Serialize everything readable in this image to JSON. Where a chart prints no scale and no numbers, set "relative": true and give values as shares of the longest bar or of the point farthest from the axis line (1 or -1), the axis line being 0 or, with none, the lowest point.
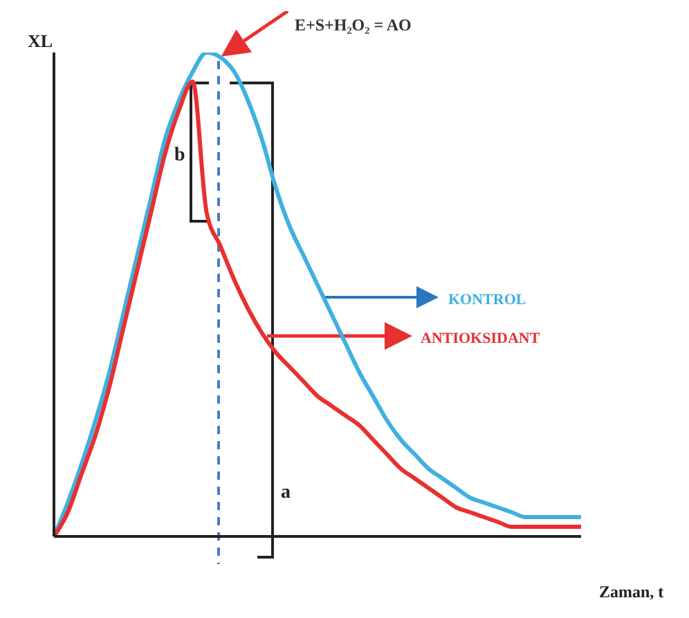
{
  "chart_data": {
    "type": "line",
    "relative": true,
    "xlabel": "Zaman, t",
    "ylabel": "XL",
    "categories": [
      null,
      null,
      null,
      null,
      null,
      null,
      null,
      null,
      null,
      null,
      null,
      null,
      null,
      null,
      null,
      null,
      null,
      null,
      null,
      null,
      null,
      null,
      null,
      null,
      null,
      null,
      null,
      null,
      null,
      null,
      null,
      null,
      null,
      null,
      null,
      null,
      null,
      null,
      null
    ],
    "series": [
      {
        "name": "KONTROL",
        "color": "#3fb0e0",
        "values": [
          0,
          0.07,
          0.15,
          0.24,
          0.34,
          0.46,
          0.58,
          0.7,
          0.82,
          0.9,
          0.96,
          1,
          0.99,
          0.96,
          0.9,
          0.82,
          0.72,
          0.64,
          0.58,
          0.52,
          0.46,
          0.4,
          0.34,
          0.29,
          0.24,
          0.2,
          0.17,
          0.14,
          0.12,
          0.1,
          0.08,
          0.07,
          0.06,
          0.05,
          0.04,
          0.04,
          0.04,
          0.04,
          0.04
        ]
      },
      {
        "name": "ANTIOKSIDANT",
        "color": "#e83030",
        "values": [
          0,
          0.05,
          0.13,
          0.21,
          0.31,
          0.43,
          0.55,
          0.67,
          0.79,
          0.88,
          0.94,
          0.67,
          0.6,
          0.53,
          0.47,
          0.42,
          0.38,
          0.35,
          0.32,
          0.29,
          0.27,
          0.25,
          0.23,
          0.2,
          0.17,
          0.14,
          0.12,
          0.1,
          0.08,
          0.06,
          0.05,
          0.04,
          0.03,
          0.02,
          0.02,
          0.02,
          0.02,
          0.02,
          0.02
        ]
      }
    ],
    "annotations": [
      "E+S+H₂O₂ = AO",
      "b",
      "a"
    ],
    "legend": false,
    "grid": false,
    "marker": "none",
    "line_style": "solid"
  }
}
